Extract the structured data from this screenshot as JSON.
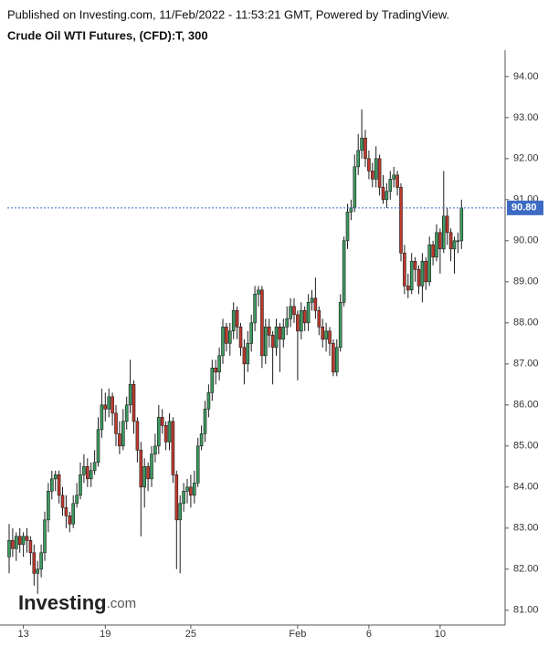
{
  "header": {
    "published": "Published on Investing.com, 11/Feb/2022 - 11:53:21 GMT, Powered by TradingView.",
    "symbol": "Crude Oil WTI Futures, (CFD):T, 300"
  },
  "watermark": {
    "brand": "Investing",
    "suffix": ".com"
  },
  "chart_data": {
    "type": "candlestick",
    "up_color": "#3c9a5f",
    "down_color": "#c0392b",
    "outline_color": "#1d1d1d",
    "ylim": [
      80.64,
      94.53
    ],
    "yticks": [
      {
        "value": 81,
        "label": "81.00"
      },
      {
        "value": 82,
        "label": "82.00"
      },
      {
        "value": 83,
        "label": "83.00"
      },
      {
        "value": 84,
        "label": "84.00"
      },
      {
        "value": 85,
        "label": "85.00"
      },
      {
        "value": 86,
        "label": "86.00"
      },
      {
        "value": 87,
        "label": "87.00"
      },
      {
        "value": 88,
        "label": "88.00"
      },
      {
        "value": 89,
        "label": "89.00"
      },
      {
        "value": 90,
        "label": "90.00"
      },
      {
        "value": 91,
        "label": "91.00"
      },
      {
        "value": 92,
        "label": "92.00"
      },
      {
        "value": 93,
        "label": "93.00"
      },
      {
        "value": 94,
        "label": "94.00"
      }
    ],
    "last_price": {
      "value": 90.8,
      "label": "90.80",
      "color": "#3d6bc4"
    },
    "categories": [
      null,
      null,
      null,
      null,
      "13",
      null,
      null,
      null,
      null,
      null,
      null,
      null,
      null,
      null,
      null,
      null,
      null,
      null,
      null,
      null,
      null,
      null,
      null,
      null,
      null,
      null,
      null,
      "19",
      null,
      null,
      null,
      null,
      null,
      null,
      null,
      null,
      null,
      null,
      null,
      null,
      null,
      null,
      null,
      null,
      null,
      null,
      null,
      null,
      null,
      null,
      null,
      "25",
      null,
      null,
      null,
      null,
      null,
      null,
      null,
      null,
      null,
      null,
      null,
      null,
      null,
      null,
      null,
      null,
      null,
      null,
      null,
      null,
      null,
      null,
      null,
      null,
      null,
      null,
      null,
      null,
      null,
      "Feb",
      null,
      null,
      null,
      null,
      null,
      null,
      null,
      null,
      null,
      null,
      null,
      null,
      null,
      null,
      null,
      null,
      null,
      null,
      null,
      "6",
      null,
      null,
      null,
      null,
      null,
      null,
      null,
      null,
      null,
      null,
      null,
      null,
      null,
      null,
      null,
      null,
      null,
      null,
      null,
      "10",
      null,
      null,
      null,
      null,
      null,
      null
    ],
    "open": [
      82.3,
      82.7,
      82.5,
      82.8,
      82.6,
      82.8,
      82.7,
      82.4,
      81.9,
      82.0,
      82.4,
      83.2,
      83.9,
      84.2,
      84.3,
      83.8,
      83.5,
      83.3,
      83.1,
      83.6,
      83.8,
      84.3,
      84.5,
      84.2,
      84.4,
      84.6,
      85.4,
      86.0,
      85.9,
      86.2,
      85.8,
      85.3,
      85.0,
      85.6,
      86.0,
      86.5,
      85.6,
      84.9,
      84.0,
      84.5,
      84.2,
      84.8,
      85.0,
      85.7,
      85.5,
      85.1,
      85.6,
      84.3,
      83.2,
      83.6,
      83.9,
      84.0,
      83.8,
      84.1,
      85.0,
      85.3,
      85.9,
      86.3,
      86.9,
      86.8,
      87.2,
      87.9,
      87.5,
      87.8,
      88.3,
      87.9,
      87.4,
      87.0,
      87.5,
      88.0,
      88.7,
      88.8,
      87.2,
      87.9,
      87.7,
      87.4,
      87.9,
      87.6,
      87.9,
      88.1,
      88.4,
      88.2,
      87.8,
      88.3,
      88.0,
      88.5,
      88.6,
      88.3,
      87.9,
      87.6,
      87.8,
      87.5,
      86.8,
      87.4,
      88.5,
      90.0,
      90.7,
      90.8,
      91.8,
      92.2,
      92.5,
      92.0,
      91.7,
      91.5,
      92.0,
      91.3,
      91.0,
      91.2,
      91.5,
      91.6,
      91.3,
      89.7,
      88.9,
      88.8,
      89.5,
      89.3,
      88.9,
      89.5,
      89.0,
      89.9,
      89.6,
      90.2,
      89.8,
      90.6,
      90.2,
      89.8,
      90.0,
      90.0
    ],
    "high": [
      83.1,
      83.0,
      82.9,
      83.0,
      82.9,
      83.0,
      82.8,
      82.6,
      82.2,
      82.6,
      83.4,
      84.1,
      84.4,
      84.4,
      84.4,
      84.0,
      83.8,
      83.4,
      83.8,
      84.1,
      84.6,
      84.8,
      84.7,
      84.6,
      84.9,
      85.7,
      86.4,
      86.3,
      86.4,
      86.3,
      86.0,
      85.6,
      85.9,
      86.2,
      87.1,
      86.6,
      85.7,
      85.1,
      84.7,
      84.6,
      85.0,
      85.3,
      86.0,
      85.9,
      85.6,
      85.8,
      85.7,
      84.4,
      83.8,
      84.1,
      84.2,
      84.3,
      84.4,
      85.2,
      85.5,
      86.1,
      86.5,
      87.1,
      87.1,
      87.4,
      88.1,
      88.0,
      88.0,
      88.5,
      88.4,
      88.0,
      87.6,
      87.8,
      88.2,
      88.9,
      88.9,
      88.9,
      88.1,
      88.1,
      87.8,
      88.1,
      88.0,
      88.1,
      88.4,
      88.6,
      88.6,
      88.3,
      88.5,
      88.4,
      88.7,
      88.8,
      89.1,
      88.4,
      88.1,
      88.0,
      87.9,
      87.6,
      87.6,
      88.7,
      90.1,
      90.9,
      91.0,
      92.1,
      92.6,
      93.2,
      92.7,
      92.2,
      91.9,
      92.3,
      92.1,
      91.6,
      91.4,
      91.7,
      91.8,
      91.7,
      91.4,
      89.9,
      89.2,
      89.7,
      89.6,
      89.4,
      89.7,
      89.6,
      90.1,
      90.0,
      90.4,
      90.3,
      91.7,
      90.8,
      90.3,
      90.1,
      90.2,
      91.0
    ],
    "low": [
      81.9,
      82.3,
      82.2,
      82.4,
      82.3,
      82.4,
      82.1,
      81.6,
      81.4,
      81.8,
      82.2,
      82.9,
      83.7,
      83.9,
      83.6,
      83.3,
      83.0,
      82.9,
      83.0,
      83.5,
      83.7,
      84.1,
      84.0,
      84.0,
      84.3,
      84.5,
      85.2,
      85.6,
      85.7,
      85.5,
      85.0,
      84.8,
      84.9,
      85.4,
      85.8,
      85.3,
      84.6,
      82.8,
      83.5,
      83.9,
      84.0,
      84.6,
      84.8,
      85.3,
      84.9,
      84.9,
      84.1,
      82.0,
      81.9,
      83.4,
      83.6,
      83.5,
      83.6,
      84.0,
      84.9,
      85.1,
      85.7,
      86.1,
      86.5,
      86.6,
      87.0,
      87.3,
      87.2,
      87.6,
      87.6,
      87.2,
      86.5,
      86.8,
      87.3,
      87.8,
      88.4,
      86.9,
      87.0,
      87.4,
      86.5,
      87.2,
      86.8,
      87.4,
      87.7,
      87.9,
      88.0,
      86.6,
      87.6,
      87.8,
      87.8,
      88.3,
      88.1,
      87.7,
      87.4,
      87.3,
      87.2,
      86.7,
      86.7,
      87.3,
      88.4,
      89.8,
      90.5,
      90.7,
      91.6,
      92.0,
      91.8,
      91.5,
      91.3,
      91.3,
      91.1,
      90.9,
      90.8,
      91.0,
      91.3,
      91.1,
      89.5,
      88.7,
      88.6,
      88.7,
      89.0,
      88.7,
      88.5,
      88.8,
      88.9,
      89.4,
      89.5,
      89.2,
      89.7,
      89.9,
      89.5,
      89.2,
      89.7,
      89.8
    ],
    "close": [
      82.7,
      82.5,
      82.8,
      82.6,
      82.8,
      82.7,
      82.4,
      81.9,
      82.0,
      82.4,
      83.2,
      83.9,
      84.2,
      84.3,
      83.8,
      83.5,
      83.3,
      83.1,
      83.6,
      83.8,
      84.3,
      84.5,
      84.2,
      84.4,
      84.6,
      85.4,
      86.0,
      85.9,
      86.2,
      85.8,
      85.3,
      85.0,
      85.6,
      86.0,
      86.5,
      85.6,
      84.9,
      84.0,
      84.5,
      84.2,
      84.8,
      85.0,
      85.7,
      85.5,
      85.1,
      85.6,
      84.3,
      83.2,
      83.6,
      83.9,
      84.0,
      83.8,
      84.1,
      85.0,
      85.3,
      85.9,
      86.3,
      86.9,
      86.8,
      87.2,
      87.9,
      87.5,
      87.8,
      88.3,
      87.9,
      87.4,
      87.0,
      87.5,
      88.0,
      88.7,
      88.8,
      87.2,
      87.9,
      87.7,
      87.4,
      87.9,
      87.6,
      87.9,
      88.1,
      88.4,
      88.2,
      87.8,
      88.3,
      88.0,
      88.5,
      88.6,
      88.3,
      87.9,
      87.6,
      87.8,
      87.5,
      86.8,
      87.4,
      88.5,
      90.0,
      90.7,
      90.8,
      91.8,
      92.2,
      92.5,
      92.0,
      91.7,
      91.5,
      92.0,
      91.3,
      91.0,
      91.2,
      91.5,
      91.6,
      91.3,
      89.7,
      88.9,
      88.8,
      89.5,
      89.3,
      88.9,
      89.5,
      89.0,
      89.9,
      89.6,
      90.2,
      89.8,
      90.6,
      90.2,
      89.8,
      90.0,
      90.0,
      90.8
    ]
  }
}
